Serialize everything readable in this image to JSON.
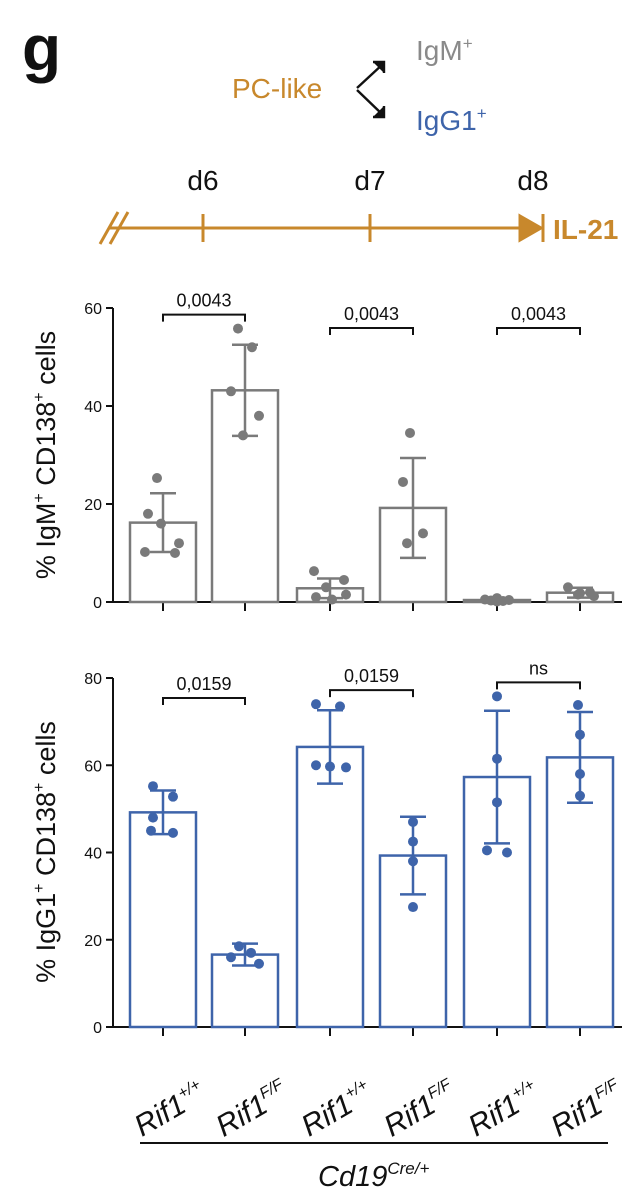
{
  "panel_letter": "g",
  "scheme": {
    "stage": "PC-like",
    "branch_top": {
      "label": "IgM",
      "sup": "+"
    },
    "branch_bottom": {
      "label": "IgG1",
      "sup": "+"
    },
    "days": [
      "d6",
      "d7",
      "d8"
    ],
    "cytokine": "IL-21"
  },
  "colors": {
    "orange": "#C8882C",
    "gray": "#7a7a7a",
    "blue": "#3E64AA",
    "black": "#111111"
  },
  "genotype_labels": [
    {
      "base": "Rif1",
      "sup": "+/+"
    },
    {
      "base": "Rif1",
      "sup": "F/F"
    },
    {
      "base": "Rif1",
      "sup": "+/+"
    },
    {
      "base": "Rif1",
      "sup": "F/F"
    },
    {
      "base": "Rif1",
      "sup": "+/+"
    },
    {
      "base": "Rif1",
      "sup": "F/F"
    }
  ],
  "group_label": {
    "base": "Cd19",
    "sup": "Cre/+"
  },
  "chart_data": [
    {
      "type": "bar",
      "ylabel": {
        "pre": "% IgM",
        "sup1": "+",
        "mid": " CD138",
        "sup2": "+",
        "post": " cells"
      },
      "ylim": [
        0,
        60
      ],
      "yticks": [
        0,
        20,
        40,
        60
      ],
      "series": [
        {
          "means": [
            16.2,
            43.2,
            2.8,
            19.2,
            0.4,
            1.9
          ],
          "sd": [
            6.0,
            9.3,
            2.0,
            10.2,
            0.4,
            1.0
          ],
          "points": [
            [
              25.3,
              18.0,
              12.0,
              10.2,
              10.0,
              16.0
            ],
            [
              55.8,
              52.0,
              43.0,
              38.0,
              34.0
            ],
            [
              6.3,
              4.5,
              3.0,
              1.5,
              1.0,
              0.5
            ],
            [
              34.5,
              24.5,
              14.0,
              12.0
            ],
            [
              0.8,
              0.5,
              0.4,
              0.3,
              0.2,
              0.1
            ],
            [
              3.0,
              2.0,
              1.5,
              1.2,
              1.8
            ]
          ]
        }
      ],
      "comparisons": [
        {
          "pair": [
            0,
            1
          ],
          "label": "0,0043"
        },
        {
          "pair": [
            2,
            3
          ],
          "label": "0,0043"
        },
        {
          "pair": [
            4,
            5
          ],
          "label": "0,0043"
        }
      ]
    },
    {
      "type": "bar",
      "ylabel": {
        "pre": "% IgG1",
        "sup1": "+",
        "mid": " CD138",
        "sup2": "+",
        "post": " cells"
      },
      "ylim": [
        0,
        80
      ],
      "yticks": [
        0,
        20,
        40,
        60,
        80
      ],
      "series": [
        {
          "means": [
            49.2,
            16.6,
            64.2,
            39.3,
            57.3,
            61.8
          ],
          "sd": [
            5.0,
            2.5,
            8.4,
            8.9,
            15.2,
            10.4
          ],
          "points": [
            [
              55.2,
              52.8,
              48.0,
              45.0,
              44.5
            ],
            [
              18.5,
              17.0,
              16.0,
              14.5
            ],
            [
              74.0,
              73.5,
              60.0,
              59.7,
              59.5
            ],
            [
              47.0,
              42.5,
              38.0,
              27.5
            ],
            [
              75.8,
              61.5,
              51.5,
              40.5,
              40.0
            ],
            [
              73.8,
              67.0,
              58.0,
              53.0
            ]
          ]
        }
      ],
      "comparisons": [
        {
          "pair": [
            0,
            1
          ],
          "label": "0,0159"
        },
        {
          "pair": [
            2,
            3
          ],
          "label": "0,0159"
        },
        {
          "pair": [
            4,
            5
          ],
          "label": "ns"
        }
      ]
    }
  ]
}
